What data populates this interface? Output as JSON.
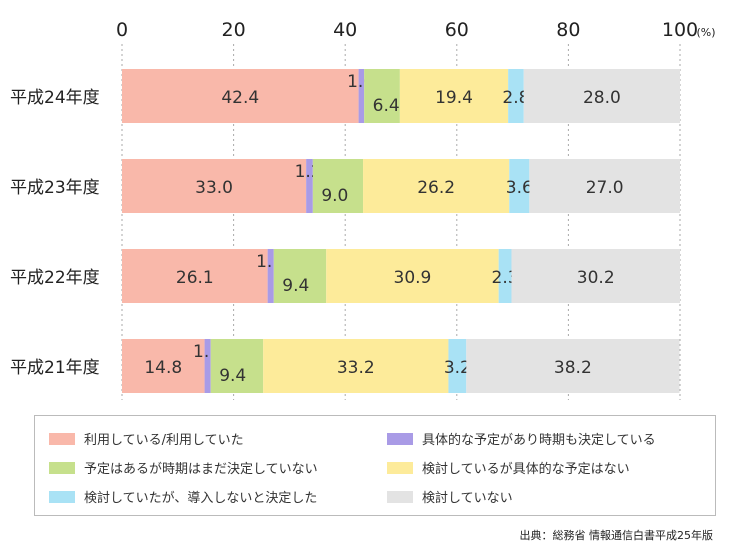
{
  "chart_data": {
    "type": "bar",
    "orientation": "horizontal",
    "stacked": true,
    "xlim": [
      0,
      100
    ],
    "x_ticks": [
      "0",
      "20",
      "40",
      "60",
      "80",
      "100"
    ],
    "unit_label": "(%)",
    "categories": [
      "平成24年度",
      "平成23年度",
      "平成22年度",
      "平成21年度"
    ],
    "series": [
      {
        "name": "利用している/利用していた",
        "color": "#f9b8aa",
        "values": [
          42.4,
          33.0,
          26.1,
          14.8
        ]
      },
      {
        "name": "具体的な予定があり時期も決定している",
        "color": "#a99be6",
        "values": [
          1.0,
          1.2,
          1.1,
          1.1
        ]
      },
      {
        "name": "予定はあるが時期はまだ決定していない",
        "color": "#c6e08c",
        "values": [
          6.4,
          9.0,
          9.4,
          9.4
        ]
      },
      {
        "name": "検討しているが具体的な予定はない",
        "color": "#fdeb9a",
        "values": [
          19.4,
          26.2,
          30.9,
          33.2
        ]
      },
      {
        "name": "検討していたが、導入しないと決定した",
        "color": "#a9e2f5",
        "values": [
          2.8,
          3.6,
          2.3,
          3.2
        ]
      },
      {
        "name": "検討していない",
        "color": "#e3e3e3",
        "values": [
          28.0,
          27.0,
          30.2,
          38.2
        ]
      }
    ],
    "value_labels": [
      [
        "42.4",
        "1.0",
        "6.4",
        "19.4",
        "2.8",
        "28.0"
      ],
      [
        "33.0",
        "1.2",
        "9.0",
        "26.2",
        "3.6",
        "27.0"
      ],
      [
        "26.1",
        "1.1",
        "9.4",
        "30.9",
        "2.3",
        "30.2"
      ],
      [
        "14.8",
        "1.1",
        "9.4",
        "33.2",
        "3.2",
        "38.2"
      ]
    ],
    "legend_position": "bottom"
  },
  "source": "出典：総務省 情報通信白書平成25年版"
}
